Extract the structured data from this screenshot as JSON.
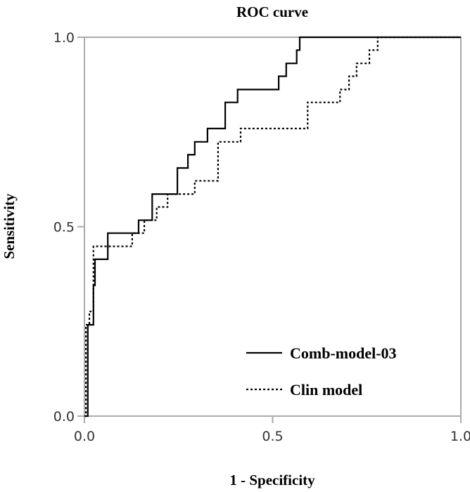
{
  "chart_data": {
    "type": "line",
    "title": "ROC curve",
    "xlabel": "1 - Specificity",
    "ylabel": "Sensitivity",
    "xlim": [
      0,
      1
    ],
    "ylim": [
      0,
      1
    ],
    "xticks": [
      "0.0",
      "0.5",
      "1.0"
    ],
    "yticks": [
      "0.0",
      "0.5",
      "1.0"
    ],
    "xtick_values": [
      0,
      0.5,
      1
    ],
    "ytick_values": [
      0,
      0.5,
      1
    ],
    "grid": false,
    "legend_position": "bottom-right",
    "series": [
      {
        "name": "Comb-model-03",
        "style": "solid",
        "color": "#000000",
        "points": [
          [
            0,
            0
          ],
          [
            0.009,
            0
          ],
          [
            0.009,
            0.103
          ],
          [
            0.009,
            0.241
          ],
          [
            0.024,
            0.241
          ],
          [
            0.024,
            0.345
          ],
          [
            0.028,
            0.345
          ],
          [
            0.028,
            0.414
          ],
          [
            0.062,
            0.414
          ],
          [
            0.062,
            0.483
          ],
          [
            0.144,
            0.483
          ],
          [
            0.144,
            0.517
          ],
          [
            0.18,
            0.517
          ],
          [
            0.18,
            0.586
          ],
          [
            0.247,
            0.586
          ],
          [
            0.247,
            0.655
          ],
          [
            0.275,
            0.655
          ],
          [
            0.275,
            0.69
          ],
          [
            0.293,
            0.69
          ],
          [
            0.293,
            0.724
          ],
          [
            0.327,
            0.724
          ],
          [
            0.327,
            0.759
          ],
          [
            0.374,
            0.759
          ],
          [
            0.374,
            0.828
          ],
          [
            0.407,
            0.828
          ],
          [
            0.407,
            0.862
          ],
          [
            0.516,
            0.862
          ],
          [
            0.516,
            0.897
          ],
          [
            0.536,
            0.897
          ],
          [
            0.536,
            0.931
          ],
          [
            0.564,
            0.931
          ],
          [
            0.564,
            0.966
          ],
          [
            0.572,
            0.966
          ],
          [
            0.572,
            1.0
          ],
          [
            1.0,
            1.0
          ]
        ]
      },
      {
        "name": "Clin model",
        "style": "dotted",
        "color": "#000000",
        "points": [
          [
            0,
            0
          ],
          [
            0.004,
            0
          ],
          [
            0.004,
            0.241
          ],
          [
            0.013,
            0.241
          ],
          [
            0.013,
            0.276
          ],
          [
            0.024,
            0.276
          ],
          [
            0.024,
            0.448
          ],
          [
            0.127,
            0.448
          ],
          [
            0.127,
            0.483
          ],
          [
            0.159,
            0.483
          ],
          [
            0.159,
            0.517
          ],
          [
            0.192,
            0.517
          ],
          [
            0.192,
            0.552
          ],
          [
            0.221,
            0.552
          ],
          [
            0.221,
            0.586
          ],
          [
            0.293,
            0.586
          ],
          [
            0.293,
            0.621
          ],
          [
            0.355,
            0.621
          ],
          [
            0.355,
            0.724
          ],
          [
            0.415,
            0.724
          ],
          [
            0.415,
            0.759
          ],
          [
            0.593,
            0.759
          ],
          [
            0.593,
            0.828
          ],
          [
            0.679,
            0.828
          ],
          [
            0.679,
            0.862
          ],
          [
            0.703,
            0.862
          ],
          [
            0.703,
            0.897
          ],
          [
            0.723,
            0.897
          ],
          [
            0.723,
            0.931
          ],
          [
            0.757,
            0.931
          ],
          [
            0.757,
            0.966
          ],
          [
            0.779,
            0.966
          ],
          [
            0.779,
            1.0
          ],
          [
            1.0,
            1.0
          ]
        ]
      }
    ]
  }
}
